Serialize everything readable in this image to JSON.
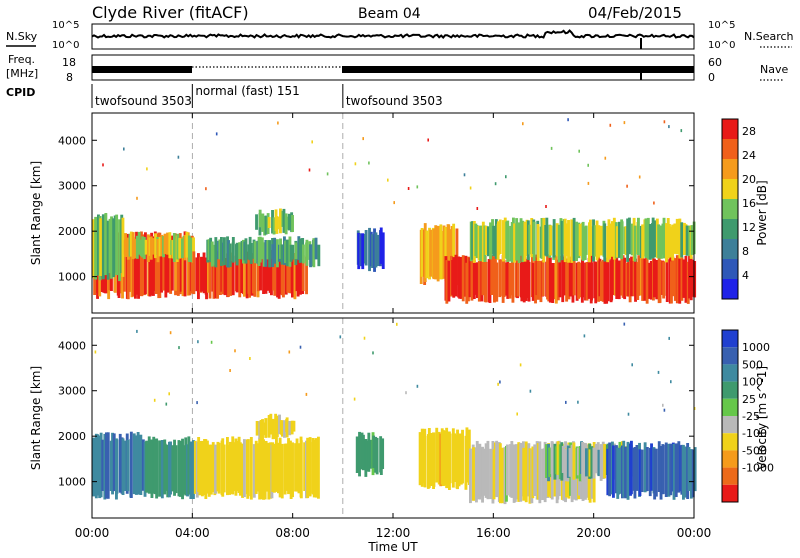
{
  "header": {
    "station": "Clyde River (fitACF)",
    "beam": "Beam 04",
    "date": "04/Feb/2015"
  },
  "status_panels": {
    "nsky_label": "N.Sky",
    "nsearch_label": "N.Search",
    "freq_label_1": "Freq.",
    "freq_label_2": "[MHz]",
    "nave_label": "Nave",
    "noise_left_ticks": [
      "10^5",
      "10^0"
    ],
    "noise_right_ticks": [
      "10^5",
      "10^0"
    ],
    "freq_left_ticks": [
      "18",
      "8"
    ],
    "nave_right_ticks": [
      "60",
      "0"
    ],
    "cpid_label": "CPID",
    "cpid_segments": [
      {
        "name": "twofsound 3503",
        "start_hr": 0,
        "end_hr": 4
      },
      {
        "name": "normal (fast) 151",
        "start_hr": 4,
        "end_hr": 10
      },
      {
        "name": "twofsound 3503",
        "start_hr": 10,
        "end_hr": 24
      }
    ]
  },
  "colors": {
    "power_scale": [
      "#1f22e8",
      "#2f58b8",
      "#3d7f99",
      "#3f9a6e",
      "#70c35c",
      "#f0d21a",
      "#f59b1c",
      "#f0601a",
      "#e81a18"
    ],
    "velocity_scale": [
      "#2040d0",
      "#3860b0",
      "#3f8aa0",
      "#3f9a6e",
      "#66c74a",
      "#b9b9b9",
      "#f0d21a",
      "#f59b1c",
      "#ec6a1a",
      "#e81a18"
    ]
  },
  "chart_data": [
    {
      "type": "heatmap",
      "title": "",
      "xlabel": "Time UT",
      "ylabel": "Slant Range [km]",
      "x_ticks": [
        "00:00",
        "04:00",
        "08:00",
        "12:00",
        "16:00",
        "20:00",
        "00:00"
      ],
      "y_ticks": [
        1000,
        2000,
        3000,
        4000
      ],
      "xlim": [
        0,
        24
      ],
      "ylim": [
        200,
        4600
      ],
      "colorbar_label": "Power [dB]",
      "colorbar_ticks": [
        4,
        8,
        12,
        16,
        20,
        24,
        28
      ],
      "colorbar_range": [
        0,
        30
      ],
      "regions": [
        {
          "t0": 0.0,
          "t1": 4.0,
          "r0": 600,
          "r1": 1900,
          "value": 26
        },
        {
          "t0": 0.0,
          "t1": 1.2,
          "r0": 1000,
          "r1": 2300,
          "value": 14
        },
        {
          "t0": 1.2,
          "t1": 4.0,
          "r0": 1400,
          "r1": 1900,
          "value": 18
        },
        {
          "t0": 4.0,
          "t1": 8.5,
          "r0": 600,
          "r1": 1500,
          "value": 27
        },
        {
          "t0": 4.5,
          "t1": 9.0,
          "r0": 1300,
          "r1": 1800,
          "value": 12
        },
        {
          "t0": 6.5,
          "t1": 8.0,
          "r0": 2000,
          "r1": 2400,
          "value": 14
        },
        {
          "t0": 13.0,
          "t1": 14.5,
          "r0": 900,
          "r1": 2100,
          "value": 20
        },
        {
          "t0": 14.0,
          "t1": 24.0,
          "r0": 500,
          "r1": 1400,
          "value": 27
        },
        {
          "t0": 15.0,
          "t1": 24.0,
          "r0": 1400,
          "r1": 2200,
          "value": 16
        },
        {
          "t0": 10.5,
          "t1": 11.6,
          "r0": 1200,
          "r1": 2000,
          "value": 6
        }
      ]
    },
    {
      "type": "heatmap",
      "title": "",
      "xlabel": "Time UT",
      "ylabel": "Slant Range [km]",
      "x_ticks": [
        "00:00",
        "04:00",
        "08:00",
        "12:00",
        "16:00",
        "20:00",
        "00:00"
      ],
      "y_ticks": [
        1000,
        2000,
        3000,
        4000
      ],
      "xlim": [
        0,
        24
      ],
      "ylim": [
        200,
        4600
      ],
      "colorbar_label": "Velocity [m s^-1]",
      "colorbar_ticks": [
        "1000",
        "500",
        "100",
        "25",
        "-25",
        "-100",
        "-500",
        "-1000"
      ],
      "colorbar_range": [
        -1000,
        1000
      ],
      "regions": [
        {
          "t0": 0.0,
          "t1": 2.0,
          "r0": 700,
          "r1": 2000,
          "value": 400
        },
        {
          "t0": 2.0,
          "t1": 4.0,
          "r0": 700,
          "r1": 1900,
          "value": 80
        },
        {
          "t0": 4.0,
          "t1": 9.0,
          "r0": 700,
          "r1": 1900,
          "value": -200
        },
        {
          "t0": 6.5,
          "t1": 8.0,
          "r0": 2000,
          "r1": 2400,
          "value": -150
        },
        {
          "t0": 13.0,
          "t1": 15.0,
          "r0": 900,
          "r1": 2100,
          "value": -300
        },
        {
          "t0": 15.0,
          "t1": 20.0,
          "r0": 600,
          "r1": 1800,
          "value": -80
        },
        {
          "t0": 18.0,
          "t1": 21.5,
          "r0": 1100,
          "r1": 1800,
          "value": 0
        },
        {
          "t0": 20.5,
          "t1": 24.0,
          "r0": 700,
          "r1": 1800,
          "value": 700
        },
        {
          "t0": 10.5,
          "t1": 11.6,
          "r0": 1200,
          "r1": 2000,
          "value": 50
        }
      ]
    }
  ]
}
